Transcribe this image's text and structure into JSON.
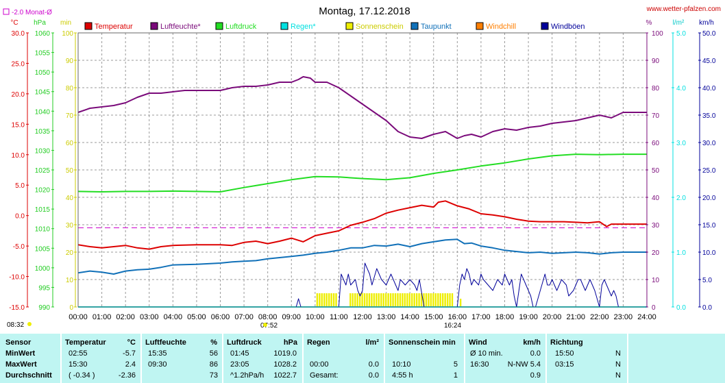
{
  "header": {
    "title": "Montag, 17.12.2018",
    "website": "www.wetter-pfalzen.com",
    "monthly_avg_label": "-2.0 Monat-Ø",
    "unit_celsius": "°C",
    "unit_hpa": "hPa",
    "unit_min": "min",
    "unit_percent": "%",
    "unit_lm2": "l/m²",
    "unit_kmh": "km/h",
    "time_start": "08:32",
    "sunrise_time": "07:52",
    "sunset_time": "16:24"
  },
  "colors": {
    "temperature": "#dd0000",
    "humidity": "#7a0a7a",
    "pressure": "#22dd22",
    "rain": "#00e0e0",
    "sunshine": "#eeee00",
    "dewpoint": "#1070b8",
    "windchill": "#ff7f00",
    "gusts": "#000099",
    "monthly_avg": "#cc00cc",
    "stats_bg": "#bff5f2"
  },
  "legend": [
    {
      "label": "Temperatur",
      "color": "#dd0000"
    },
    {
      "label": "Luftfeuchte*",
      "color": "#7a0a7a"
    },
    {
      "label": "Luftdruck",
      "color": "#22dd22"
    },
    {
      "label": "Regen*",
      "color": "#00e0e0"
    },
    {
      "label": "Sonnenschein",
      "color": "#eeee00"
    },
    {
      "label": "Taupunkt",
      "color": "#1070b8"
    },
    {
      "label": "Windchill",
      "color": "#ff7f00"
    },
    {
      "label": "Windböen",
      "color": "#000099"
    }
  ],
  "chart_data": {
    "type": "line",
    "title": "Montag, 17.12.2018",
    "x_ticks": [
      "00:00",
      "01:00",
      "02:00",
      "03:00",
      "04:00",
      "05:00",
      "06:00",
      "07:00",
      "08:00",
      "09:00",
      "10:00",
      "11:00",
      "12:00",
      "13:00",
      "14:00",
      "15:00",
      "16:00",
      "17:00",
      "18:00",
      "19:00",
      "20:00",
      "21:00",
      "22:00",
      "23:00",
      "24:00"
    ],
    "axes": {
      "temperature": {
        "unit": "°C",
        "range": [
          -15,
          30
        ],
        "ticks": [
          "30.0",
          "25.0",
          "20.0",
          "15.0",
          "10.0",
          "5.0",
          "0.0",
          "-5.0",
          "-10.0",
          "-15.0"
        ]
      },
      "pressure": {
        "unit": "hPa",
        "range": [
          990,
          1060
        ],
        "ticks": [
          "1060",
          "1055",
          "1050",
          "1045",
          "1040",
          "1035",
          "1030",
          "1025",
          "1020",
          "1015",
          "1010",
          "1005",
          "1000",
          "995",
          "990"
        ]
      },
      "sunshine": {
        "unit": "min",
        "range": [
          0,
          100
        ],
        "ticks": [
          "100",
          "90",
          "80",
          "70",
          "60",
          "50",
          "40",
          "30",
          "20",
          "10",
          "0"
        ]
      },
      "humidity": {
        "unit": "%",
        "range": [
          0,
          100
        ],
        "ticks": [
          "100",
          "90",
          "80",
          "70",
          "60",
          "50",
          "40",
          "30",
          "20",
          "10",
          "0"
        ]
      },
      "rain": {
        "unit": "l/m²",
        "range": [
          0,
          5
        ],
        "ticks": [
          "5.0",
          "4.0",
          "3.0",
          "2.0",
          "1.0",
          "0.0"
        ]
      },
      "wind": {
        "unit": "km/h",
        "range": [
          0,
          50
        ],
        "ticks": [
          "50.0",
          "45.0",
          "40.0",
          "35.0",
          "30.0",
          "25.0",
          "20.0",
          "15.0",
          "10.0",
          "5.0",
          "0.0"
        ]
      }
    },
    "monthly_avg_temperature": -2.0,
    "series": [
      {
        "name": "Temperatur",
        "axis": "temperature",
        "x": [
          0,
          0.5,
          1,
          1.5,
          2,
          2.5,
          3,
          3.5,
          4,
          5,
          6,
          6.5,
          7,
          7.5,
          8,
          8.5,
          9,
          9.5,
          10,
          10.5,
          11,
          11.5,
          12,
          12.5,
          13,
          13.5,
          14,
          14.5,
          15,
          15.2,
          15.5,
          16,
          16.5,
          17,
          17.5,
          18,
          18.5,
          19,
          19.5,
          20,
          20.5,
          21,
          21.5,
          22,
          22.3,
          22.5,
          23,
          24
        ],
        "y": [
          -4.8,
          -5.1,
          -5.3,
          -5.1,
          -4.9,
          -5.3,
          -5.5,
          -5.1,
          -4.9,
          -4.8,
          -4.8,
          -4.9,
          -4.4,
          -4.2,
          -4.6,
          -4.2,
          -3.7,
          -4.3,
          -3.3,
          -2.9,
          -2.5,
          -1.6,
          -1.1,
          -0.5,
          0.4,
          0.9,
          1.3,
          1.7,
          1.4,
          2.2,
          2.4,
          1.6,
          1.1,
          0.3,
          0.1,
          -0.2,
          -0.6,
          -0.9,
          -1.0,
          -1.0,
          -1.0,
          -1.1,
          -1.2,
          -1.0,
          -1.8,
          -1.4,
          -1.4,
          -1.4
        ]
      },
      {
        "name": "Luftfeuchte*",
        "axis": "humidity",
        "x": [
          0,
          0.5,
          1,
          1.5,
          2,
          2.5,
          3,
          3.5,
          4,
          4.5,
          5,
          5.5,
          6,
          6.5,
          7,
          7.5,
          8,
          8.5,
          9,
          9.3,
          9.5,
          9.8,
          10,
          10.5,
          11,
          11.5,
          12,
          12.5,
          13,
          13.5,
          14,
          14.5,
          15,
          15.5,
          16,
          16.3,
          16.6,
          17,
          17.5,
          18,
          18.5,
          19,
          19.5,
          20,
          20.5,
          21,
          21.5,
          22,
          22.5,
          23,
          24
        ],
        "y": [
          71,
          72.5,
          73,
          73.5,
          74.5,
          76.5,
          78,
          78,
          78.5,
          79,
          79,
          79,
          79,
          80,
          80.5,
          80.5,
          81,
          82,
          82,
          83,
          84,
          83.5,
          82,
          82,
          80,
          77,
          74,
          71,
          68,
          64,
          62,
          61.5,
          63,
          64,
          61.5,
          62.5,
          63,
          62,
          64,
          65,
          64.5,
          65.5,
          66,
          67,
          67.5,
          68,
          69,
          70,
          69,
          71,
          71
        ]
      },
      {
        "name": "Luftdruck",
        "axis": "pressure",
        "x": [
          0,
          1,
          2,
          3,
          4,
          5,
          6,
          7,
          8,
          9,
          10,
          11,
          12,
          13,
          14,
          15,
          16,
          17,
          18,
          19,
          20,
          21,
          22,
          23,
          24
        ],
        "y": [
          1019.5,
          1019.4,
          1019.5,
          1019.5,
          1019.6,
          1019.5,
          1019.4,
          1020.5,
          1021.5,
          1022.5,
          1023.3,
          1023.2,
          1022.8,
          1022.5,
          1023.0,
          1024.1,
          1025.0,
          1026.0,
          1026.8,
          1027.8,
          1028.6,
          1029.0,
          1028.9,
          1029.0,
          1029.0
        ]
      },
      {
        "name": "Taupunkt",
        "axis": "temperature",
        "x": [
          0,
          0.5,
          1,
          1.5,
          2,
          2.5,
          3,
          3.5,
          4,
          5,
          6,
          6.5,
          7,
          7.5,
          8,
          8.5,
          9,
          9.5,
          10,
          10.5,
          11,
          11.5,
          12,
          12.5,
          13,
          13.5,
          14,
          14.5,
          15,
          15.5,
          16,
          16.3,
          16.6,
          17,
          17.5,
          18,
          18.5,
          19,
          19.5,
          20,
          20.5,
          21,
          21.5,
          22,
          22.5,
          23,
          24
        ],
        "y": [
          -9.4,
          -9.1,
          -9.3,
          -9.6,
          -9.1,
          -8.9,
          -8.8,
          -8.5,
          -8.1,
          -8.0,
          -7.8,
          -7.6,
          -7.5,
          -7.4,
          -7.1,
          -6.9,
          -6.7,
          -6.5,
          -6.2,
          -6.0,
          -5.7,
          -5.3,
          -5.3,
          -4.9,
          -5.0,
          -4.7,
          -5.1,
          -4.6,
          -4.3,
          -4.0,
          -3.9,
          -4.6,
          -4.5,
          -5.0,
          -5.3,
          -5.7,
          -5.9,
          -6.1,
          -6.0,
          -6.2,
          -6.1,
          -6.0,
          -6.1,
          -6.3,
          -6.1,
          -6.0,
          -6.0
        ]
      },
      {
        "name": "Windböen",
        "axis": "wind",
        "x": [
          9.2,
          9.3,
          9.4,
          10,
          10.5,
          10.8,
          11,
          11.1,
          11.2,
          11.3,
          11.4,
          11.5,
          11.7,
          11.8,
          11.9,
          12,
          12.1,
          12.2,
          12.3,
          12.4,
          12.6,
          12.8,
          13,
          13.2,
          13.4,
          13.5,
          13.6,
          13.8,
          14,
          14.2,
          14.3,
          14.4,
          14.6,
          14.7,
          15,
          16,
          16.1,
          16.2,
          16.3,
          16.4,
          16.5,
          16.6,
          16.7,
          16.9,
          17,
          17.1,
          17.3,
          17.5,
          17.7,
          17.9,
          18,
          18.1,
          18.2,
          18.3,
          18.4,
          18.5,
          18.7,
          18.8,
          18.9,
          19,
          19.1,
          19.2,
          19.3,
          19.5,
          19.7,
          19.8,
          19.9,
          20,
          20.1,
          20.2,
          20.4,
          20.6,
          20.7,
          20.9,
          21,
          21.1,
          21.2,
          21.4,
          21.5,
          21.6,
          21.8,
          22,
          22.1,
          22.2,
          22.3,
          22.4,
          22.5,
          22.6,
          22.7,
          22.8,
          23
        ],
        "y": [
          0,
          1.5,
          0,
          0,
          0,
          0,
          0,
          6,
          5,
          4,
          6,
          4,
          5,
          3,
          2,
          3,
          8,
          7,
          6,
          4,
          7,
          5,
          4,
          6,
          4,
          3,
          5,
          4,
          5,
          4,
          3,
          5,
          0,
          0,
          0,
          0,
          4,
          6,
          5,
          7,
          6,
          4,
          5,
          4,
          6,
          5,
          4,
          3,
          5,
          4,
          6,
          5,
          4,
          5,
          2,
          0,
          6,
          5,
          4,
          3,
          2,
          0,
          0,
          3,
          6,
          4,
          4,
          5,
          4,
          3,
          5,
          4,
          2,
          3,
          4,
          5,
          5,
          3,
          4,
          5,
          3,
          0,
          4,
          5,
          4,
          3,
          2,
          3,
          2,
          0,
          0
        ]
      },
      {
        "name": "Sonnenschein",
        "axis": "sunshine",
        "type": "bar",
        "x": [
          10.1,
          10.2,
          10.3,
          10.4,
          10.5,
          10.6,
          10.7,
          10.8,
          10.9,
          11.5,
          11.6,
          11.7,
          11.8,
          11.9,
          12.0,
          12.1,
          12.2,
          12.3,
          12.4,
          12.5,
          12.6,
          12.7,
          12.8,
          12.9,
          13.0,
          13.1,
          13.2,
          13.3,
          13.4,
          13.5,
          13.6,
          13.7,
          13.8,
          13.9,
          14.0,
          14.1,
          14.2,
          14.3,
          14.4,
          14.5,
          14.6,
          14.7,
          14.8,
          14.9,
          15.0,
          15.1,
          15.2,
          15.3,
          15.4,
          15.5,
          15.6,
          15.7,
          15.8,
          16.15
        ],
        "y": [
          5,
          5,
          5,
          5,
          5,
          5,
          5,
          5,
          5,
          5,
          5,
          5,
          5,
          5,
          5,
          5,
          5,
          5,
          5,
          5,
          5,
          5,
          5,
          5,
          5,
          5,
          5,
          5,
          5,
          5,
          5,
          5,
          5,
          5,
          5,
          5,
          5,
          5,
          5,
          5,
          5,
          5,
          5,
          5,
          5,
          5,
          5,
          5,
          5,
          5,
          5,
          5,
          5,
          3
        ]
      },
      {
        "name": "Regen*",
        "axis": "rain",
        "x": [
          0,
          24
        ],
        "y": [
          0,
          0
        ]
      }
    ]
  },
  "stats": {
    "headers": {
      "sensor": "Sensor",
      "temperature": "Temperatur",
      "temperature_unit": "°C",
      "humidity": "Luftfeuchte",
      "humidity_unit": "%",
      "pressure": "Luftdruck",
      "pressure_unit": "hPa",
      "rain": "Regen",
      "rain_unit": "l/m²",
      "sunshine": "Sonnenschein min",
      "wind": "Wind",
      "wind_unit": "km/h",
      "direction": "Richtung"
    },
    "rows": [
      {
        "label": "MinWert",
        "temp_time": "02:55",
        "temp_val": "-5.7",
        "hum_time": "15:35",
        "hum_val": "56",
        "press_time": "01:45",
        "press_val": "1019.0",
        "rain_time": "",
        "rain_val": "",
        "sun_time": "",
        "sun_val": "",
        "wind_time": "Ø 10 min.",
        "wind_val": "0.0",
        "dir_time": "15:50",
        "dir_val": "N"
      },
      {
        "label": "MaxWert",
        "temp_time": "15:30",
        "temp_val": "2.4",
        "hum_time": "09:30",
        "hum_val": "86",
        "press_time": "23:05",
        "press_val": "1028.2",
        "rain_time": "00:00",
        "rain_val": "0.0",
        "sun_time": "10:10",
        "sun_val": "5",
        "wind_time": "16:30",
        "wind_val": "N-NW 5.4",
        "dir_time": "03:15",
        "dir_val": "N"
      },
      {
        "label": "Durchschnitt",
        "temp_time": "( -0.34 )",
        "temp_val": "-2.36",
        "hum_time": "",
        "hum_val": "73",
        "press_time": "^1.2hPa/h",
        "press_val": "1022.7",
        "rain_time": "Gesamt:",
        "rain_val": "0.0",
        "sun_time": "4:55 h",
        "sun_val": "1",
        "wind_time": "",
        "wind_val": "0.9",
        "dir_time": "",
        "dir_val": "N"
      }
    ]
  }
}
